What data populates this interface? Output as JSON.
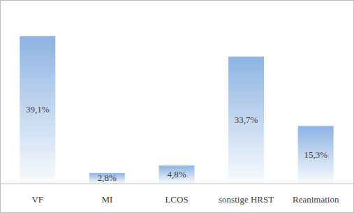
{
  "chart_data": {
    "type": "bar",
    "categories": [
      "VF",
      "MI",
      "LCOS",
      "sonstige HRST",
      "Reanimation"
    ],
    "values": [
      39.1,
      2.8,
      4.8,
      33.7,
      15.3
    ],
    "value_labels": [
      "39,1%",
      "2,8%",
      "4,8%",
      "33,7%",
      "15,3%"
    ],
    "color": "#8db3e2",
    "ylim": [
      0,
      40
    ],
    "data_labels": true,
    "tick_labels": "x",
    "grid": false
  }
}
